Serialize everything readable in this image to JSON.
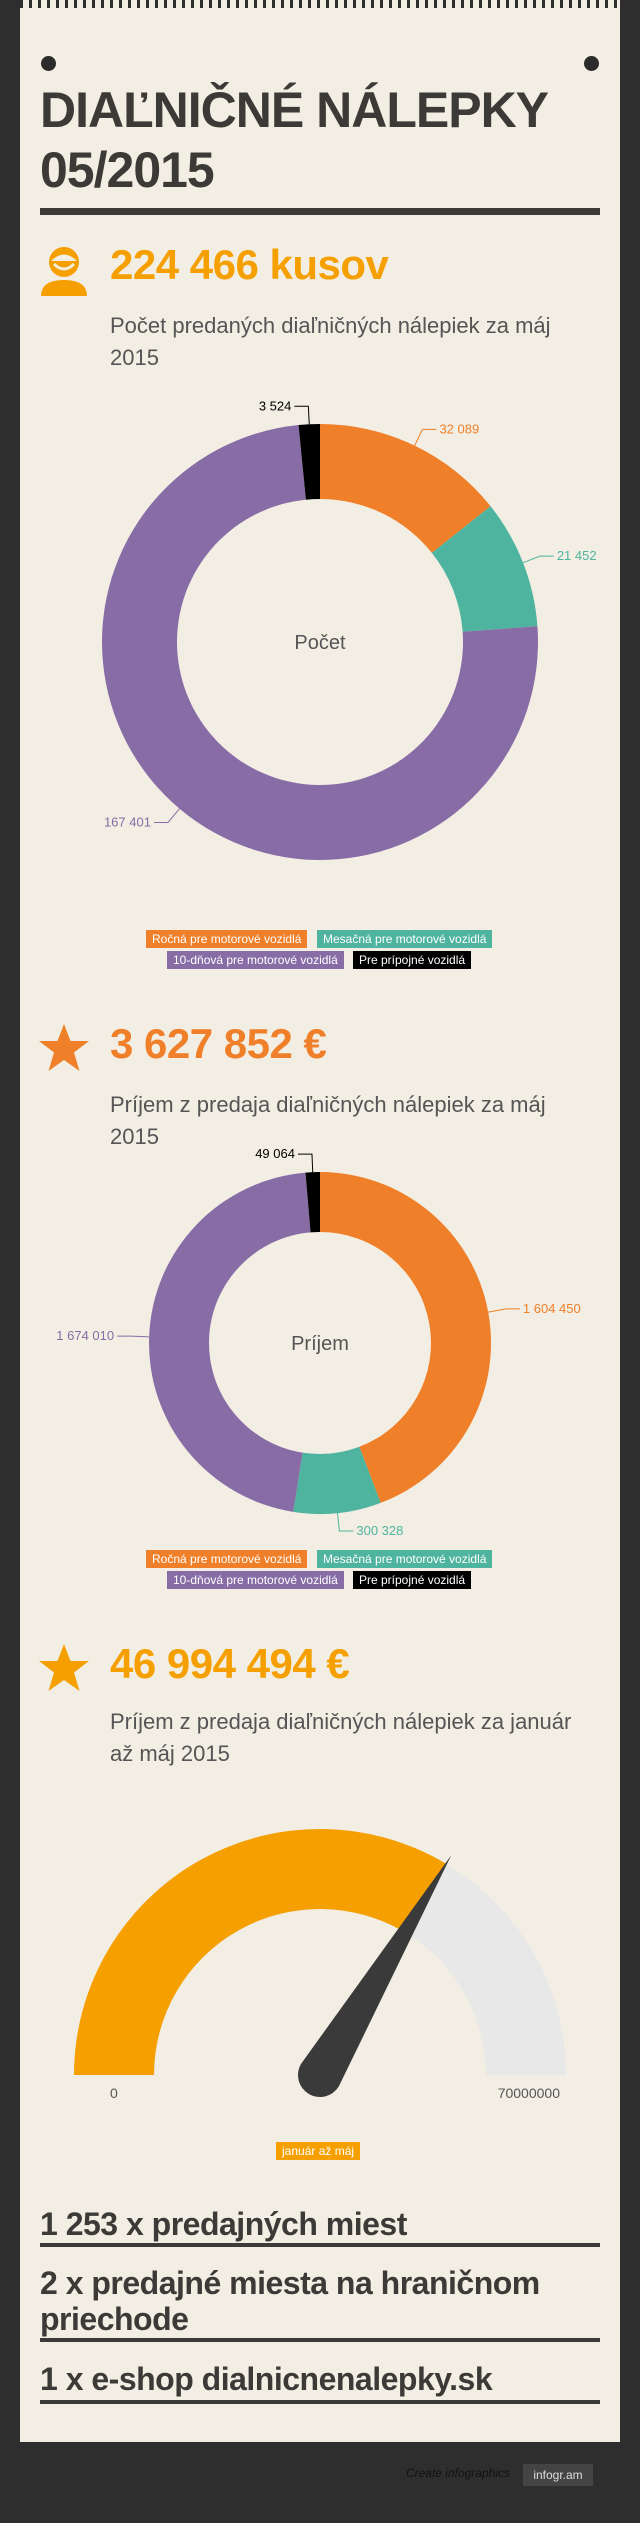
{
  "title": "DIAĽNIČNÉ NÁLEPKY 05/2015",
  "colors": {
    "orange": "#f07f29",
    "teal": "#4fb49f",
    "purple": "#876ca6",
    "black": "#000000",
    "gold": "#f5a000",
    "track": "#e8e8e8",
    "needle": "#3a3a3a"
  },
  "section1": {
    "icon": "person-icon",
    "big_value": "224 466 kusov",
    "subtitle": "Počet predaných diaľničných nálepiek za máj 2015"
  },
  "section2": {
    "icon": "star-icon",
    "big_value": "3 627 852 €",
    "subtitle": "Príjem z predaja diaľničných nálepiek za máj 2015"
  },
  "section3": {
    "icon": "star-icon",
    "big_value": "46 994 494 €",
    "subtitle": "Príjem z predaja diaľničných nálepiek za január až máj 2015"
  },
  "stats": [
    "1 253 x predajných miest",
    "2 x predajné miesta na hraničnom priechode",
    "1 x e-shop dialnicnenalepky.sk"
  ],
  "footer": {
    "text": "Create infographics",
    "button": "infogr.am"
  },
  "chart_data": [
    {
      "type": "pie",
      "variant": "donut",
      "center_label": "Počet",
      "categories": [
        "Ročná pre motorové vozidlá",
        "Mesačná pre motorové vozidlá",
        "10-dňová pre motorové vozidlá",
        "Pre prípojné vozidlá"
      ],
      "values": [
        32089,
        21452,
        167401,
        3524
      ],
      "value_labels": [
        "32 089",
        "21 452",
        "167 401",
        "3 524"
      ],
      "colors": [
        "#f07f29",
        "#4fb49f",
        "#876ca6",
        "#000000"
      ],
      "legend": "bottom"
    },
    {
      "type": "pie",
      "variant": "donut",
      "center_label": "Príjem",
      "categories": [
        "Ročná pre motorové vozidlá",
        "Mesačná pre motorové vozidlá",
        "10-dňová pre motorové vozidlá",
        "Pre prípojné vozidlá"
      ],
      "values": [
        1604450,
        300328,
        1674010,
        49064
      ],
      "value_labels": [
        "1 604 450",
        "300 328",
        "1 674 010",
        "49 064"
      ],
      "colors": [
        "#f07f29",
        "#4fb49f",
        "#876ca6",
        "#000000"
      ],
      "legend": "bottom"
    },
    {
      "type": "gauge",
      "value": 46994494,
      "min": 0,
      "max": 70000000,
      "min_label": "0",
      "max_label": "70000000",
      "legend_label": "január až máj",
      "colors": [
        "#f5a000",
        "#e8e8e8"
      ]
    }
  ]
}
